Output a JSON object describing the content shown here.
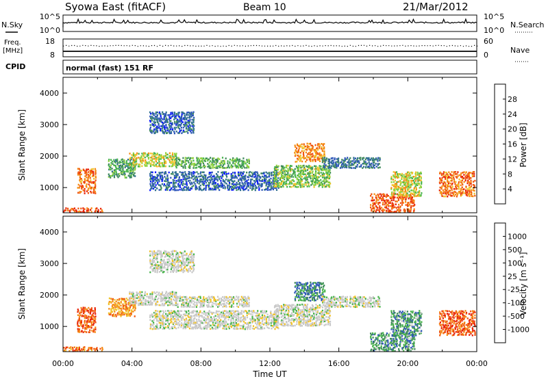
{
  "header": {
    "station": "Syowa East (fitACF)",
    "beam": "Beam 10",
    "date": "21/Mar/2012"
  },
  "noise_panel": {
    "left_label": "N.Sky",
    "left_ticks": [
      "10^5",
      "10^0"
    ],
    "right_label": "N.Search",
    "right_ticks": [
      "10^5",
      "10^0"
    ]
  },
  "freq_panel": {
    "left_label_1": "Freq.",
    "left_label_2": "[MHz]",
    "left_ticks": [
      "18",
      "8"
    ],
    "right_label": "Nave",
    "right_ticks": [
      "60",
      "0"
    ]
  },
  "cpid_panel": {
    "label": "CPID",
    "text": "normal (fast) 151 RF"
  },
  "colors": {
    "power_scale": [
      "#0a1aff",
      "#2c55b8",
      "#2e6f8f",
      "#3f8a5a",
      "#48b44c",
      "#8fd13d",
      "#f0c22a",
      "#f58a14",
      "#f0560f",
      "#e82208"
    ],
    "velocity_scale": [
      "#e82208",
      "#f0560f",
      "#f58a14",
      "#f0c22a",
      "#c8c8c8",
      "#c8c8c8",
      "#48b44c",
      "#3f8a5a",
      "#2c55b8",
      "#0a1aff"
    ]
  },
  "chart_data": [
    {
      "type": "heatmap",
      "panel": "power",
      "ylabel": "Slant Range [km]",
      "xlabel": "",
      "ylim": [
        200,
        4500
      ],
      "xlim_hours": [
        0,
        24
      ],
      "y_ticks": [
        "1000",
        "2000",
        "3000",
        "4000"
      ],
      "x_ticks": [
        "00:00",
        "04:00",
        "08:00",
        "12:00",
        "16:00",
        "20:00",
        "00:00"
      ],
      "colorbar": {
        "label": "Power [dB]",
        "range": [
          0,
          30
        ],
        "ticks": [
          "4",
          "8",
          "12",
          "16",
          "20",
          "24",
          "28"
        ]
      },
      "echo_regions": [
        {
          "t": [
            0.0,
            2.3
          ],
          "r": [
            200,
            350
          ],
          "level": 0.9
        },
        {
          "t": [
            0.8,
            1.9
          ],
          "r": [
            800,
            1600
          ],
          "level": 0.82
        },
        {
          "t": [
            2.6,
            4.2
          ],
          "r": [
            1300,
            1900
          ],
          "level": 0.4
        },
        {
          "t": [
            3.8,
            6.6
          ],
          "r": [
            1650,
            2100
          ],
          "level": 0.6
        },
        {
          "t": [
            5.0,
            7.6
          ],
          "r": [
            2700,
            3400
          ],
          "level": 0.2
        },
        {
          "t": [
            6.5,
            10.8
          ],
          "r": [
            1600,
            1950
          ],
          "level": 0.45
        },
        {
          "t": [
            5.0,
            12.5
          ],
          "r": [
            900,
            1500
          ],
          "level": 0.2
        },
        {
          "t": [
            12.2,
            15.5
          ],
          "r": [
            1000,
            1700
          ],
          "level": 0.5
        },
        {
          "t": [
            13.4,
            15.2
          ],
          "r": [
            1800,
            2400
          ],
          "level": 0.75
        },
        {
          "t": [
            15.0,
            18.4
          ],
          "r": [
            1600,
            1950
          ],
          "level": 0.25
        },
        {
          "t": [
            17.8,
            20.4
          ],
          "r": [
            200,
            800
          ],
          "level": 0.85
        },
        {
          "t": [
            19.0,
            20.8
          ],
          "r": [
            700,
            1500
          ],
          "level": 0.6
        },
        {
          "t": [
            21.8,
            23.9
          ],
          "r": [
            700,
            1500
          ],
          "level": 0.8
        }
      ]
    },
    {
      "type": "heatmap",
      "panel": "velocity",
      "ylabel": "Slant Range [km]",
      "xlabel": "Time UT",
      "ylim": [
        200,
        4500
      ],
      "xlim_hours": [
        0,
        24
      ],
      "y_ticks": [
        "1000",
        "2000",
        "3000",
        "4000"
      ],
      "x_ticks": [
        "00:00",
        "04:00",
        "08:00",
        "12:00",
        "16:00",
        "20:00",
        "00:00"
      ],
      "colorbar": {
        "label": "Velocity [m s⁻¹]",
        "range": [
          -1000,
          1000
        ],
        "ticks": [
          "-1000",
          "-500",
          "-100",
          "-25",
          "25",
          "100",
          "500",
          "1000"
        ]
      },
      "echo_regions": [
        {
          "t": [
            0.0,
            2.3
          ],
          "r": [
            200,
            350
          ],
          "level": 0.2
        },
        {
          "t": [
            0.8,
            1.9
          ],
          "r": [
            800,
            1600
          ],
          "level": 0.15
        },
        {
          "t": [
            2.6,
            4.2
          ],
          "r": [
            1300,
            1900
          ],
          "level": 0.25
        },
        {
          "t": [
            3.8,
            6.6
          ],
          "r": [
            1650,
            2100
          ],
          "level": 0.5
        },
        {
          "t": [
            5.0,
            7.6
          ],
          "r": [
            2700,
            3400
          ],
          "level": 0.5
        },
        {
          "t": [
            6.5,
            10.8
          ],
          "r": [
            1600,
            1950
          ],
          "level": 0.5
        },
        {
          "t": [
            5.0,
            12.5
          ],
          "r": [
            900,
            1500
          ],
          "level": 0.5
        },
        {
          "t": [
            12.2,
            15.5
          ],
          "r": [
            1000,
            1700
          ],
          "level": 0.5
        },
        {
          "t": [
            13.4,
            15.2
          ],
          "r": [
            1800,
            2400
          ],
          "level": 0.75
        },
        {
          "t": [
            15.0,
            18.4
          ],
          "r": [
            1600,
            1950
          ],
          "level": 0.5
        },
        {
          "t": [
            17.8,
            20.4
          ],
          "r": [
            200,
            800
          ],
          "level": 0.72
        },
        {
          "t": [
            19.0,
            20.8
          ],
          "r": [
            700,
            1500
          ],
          "level": 0.7
        },
        {
          "t": [
            21.8,
            23.9
          ],
          "r": [
            700,
            1500
          ],
          "level": 0.15
        }
      ]
    }
  ]
}
